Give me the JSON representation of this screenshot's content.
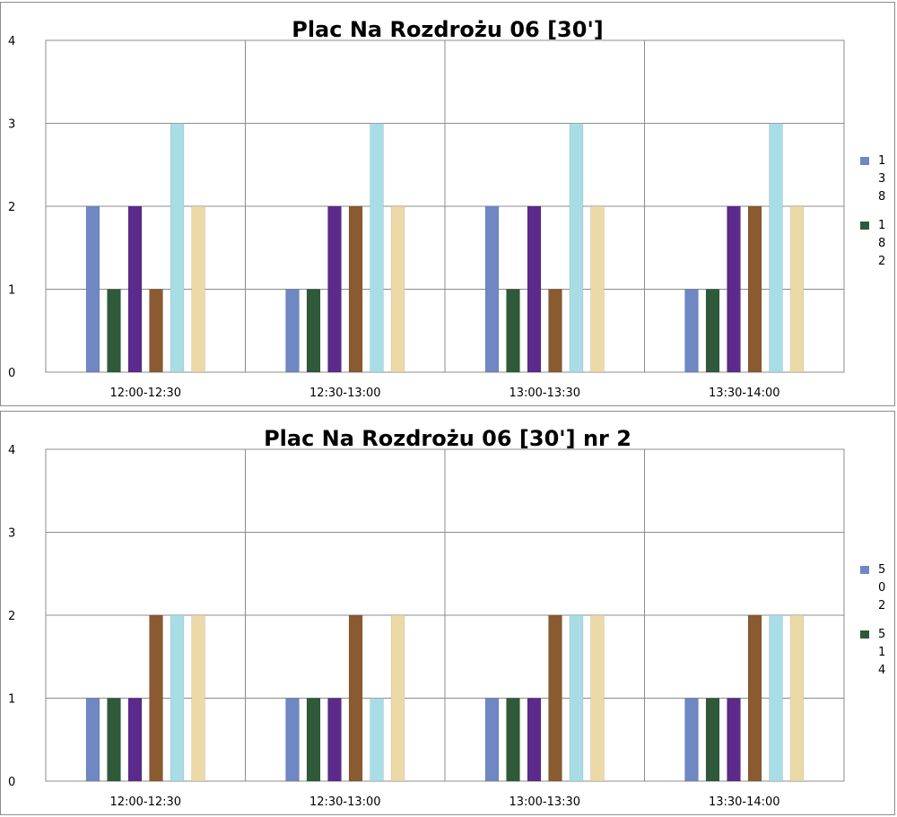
{
  "chart_data": [
    {
      "type": "bar",
      "title": "Plac Na Rozdrożu 06 [30']",
      "xlabel": "",
      "ylabel": "",
      "ylim": [
        0,
        4
      ],
      "yticks": [
        0,
        1,
        2,
        3,
        4
      ],
      "grid": true,
      "legend_position": "right",
      "categories": [
        "12:00-12:30",
        "12:30-13:00",
        "13:00-13:30",
        "13:30-14:00"
      ],
      "series": [
        {
          "name": "138",
          "color": "#6f88c4",
          "values": [
            2,
            1,
            2,
            1
          ]
        },
        {
          "name": "182",
          "color": "#2f5a3a",
          "values": [
            1,
            1,
            1,
            1
          ]
        },
        {
          "color": "#5b2a8a",
          "values": [
            2,
            2,
            2,
            2
          ]
        },
        {
          "color": "#8a5a30",
          "values": [
            1,
            2,
            1,
            2
          ]
        },
        {
          "color": "#a8dde6",
          "values": [
            3,
            3,
            3,
            3
          ]
        },
        {
          "color": "#ecd9a8",
          "values": [
            2,
            2,
            2,
            2
          ]
        }
      ]
    },
    {
      "type": "bar",
      "title": "Plac Na Rozdrożu 06 [30'] nr 2",
      "xlabel": "",
      "ylabel": "",
      "ylim": [
        0,
        4
      ],
      "yticks": [
        0,
        1,
        2,
        3,
        4
      ],
      "grid": true,
      "legend_position": "right",
      "categories": [
        "12:00-12:30",
        "12:30-13:00",
        "13:00-13:30",
        "13:30-14:00"
      ],
      "series": [
        {
          "name": "502",
          "color": "#6f88c4",
          "values": [
            1,
            1,
            1,
            1
          ]
        },
        {
          "name": "514",
          "color": "#2f5a3a",
          "values": [
            1,
            1,
            1,
            1
          ]
        },
        {
          "color": "#5b2a8a",
          "values": [
            1,
            1,
            1,
            1
          ]
        },
        {
          "color": "#8a5a30",
          "values": [
            2,
            2,
            2,
            2
          ]
        },
        {
          "color": "#a8dde6",
          "values": [
            2,
            1,
            2,
            2
          ]
        },
        {
          "color": "#ecd9a8",
          "values": [
            2,
            2,
            2,
            2
          ]
        }
      ]
    }
  ]
}
